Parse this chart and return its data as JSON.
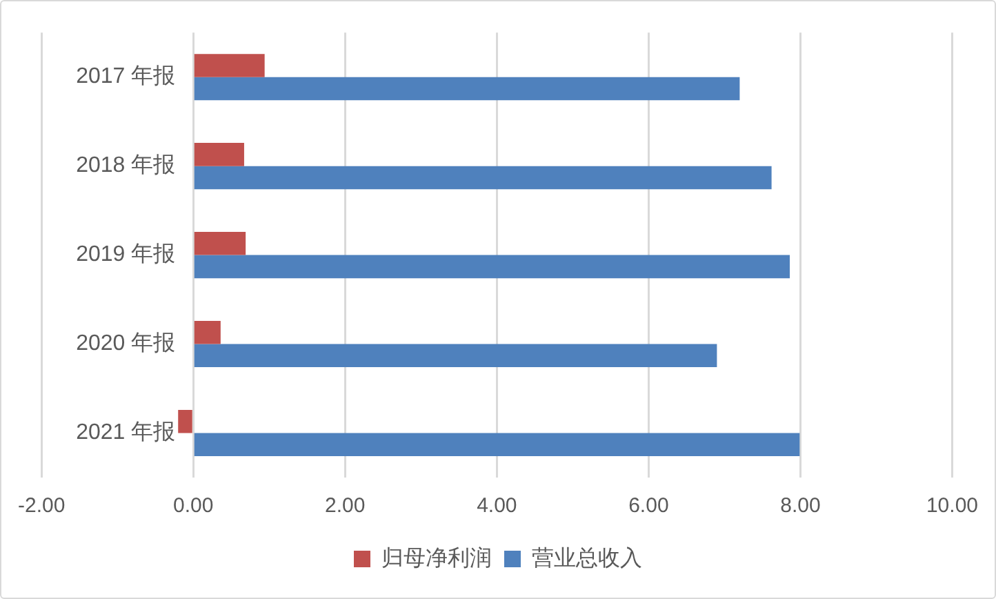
{
  "chart_data": {
    "type": "bar",
    "orientation": "horizontal",
    "categories": [
      "2017 年报",
      "2018 年报",
      "2019 年报",
      "2020 年报",
      "2021 年报"
    ],
    "series": [
      {
        "name": "归母净利润",
        "color": "#c0504d",
        "values": [
          0.94,
          0.67,
          0.69,
          0.36,
          -0.2
        ]
      },
      {
        "name": "营业总收入",
        "color": "#4f81bd",
        "values": [
          7.2,
          7.62,
          7.86,
          6.9,
          7.99
        ]
      }
    ],
    "xlim": [
      -2,
      10
    ],
    "xticks": [
      {
        "value": -2,
        "label": "-2.00"
      },
      {
        "value": 0,
        "label": "0.00"
      },
      {
        "value": 2,
        "label": "2.00"
      },
      {
        "value": 4,
        "label": "4.00"
      },
      {
        "value": 6,
        "label": "6.00"
      },
      {
        "value": 8,
        "label": "8.00"
      },
      {
        "value": 10,
        "label": "10.00"
      }
    ],
    "grid": "x",
    "legend": "bottom"
  }
}
